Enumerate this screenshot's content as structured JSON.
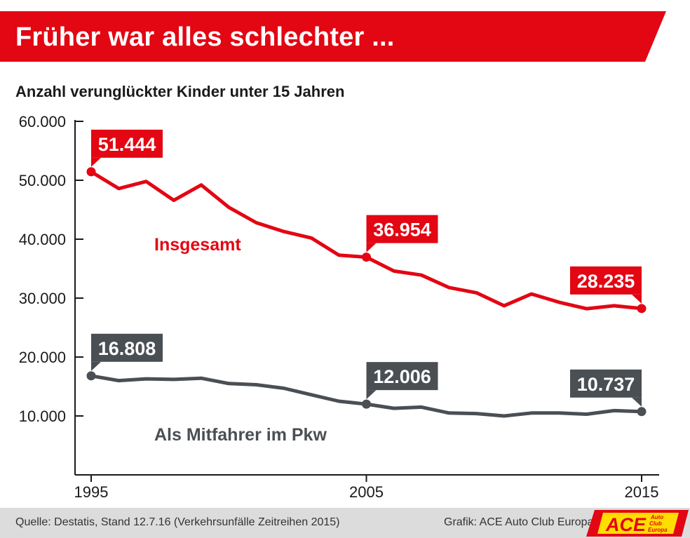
{
  "header": {
    "title": "Früher war alles schlechter ...",
    "subtitle": "Anzahl verunglückter Kinder unter 15 Jahren"
  },
  "colors": {
    "accent_red": "#e30613",
    "series_gray": "#4a4f54",
    "axis": "#1a1a1a",
    "footer_bg": "#dcdcdc",
    "logo_yellow": "#ffdd00"
  },
  "chart_data": {
    "type": "line",
    "title": "Anzahl verunglückter Kinder unter 15 Jahren",
    "xlabel": "",
    "ylabel": "",
    "ylim": [
      0,
      60000
    ],
    "xlim": [
      1995,
      2015
    ],
    "y_ticks": [
      10000,
      20000,
      30000,
      40000,
      50000,
      60000
    ],
    "y_tick_labels": [
      "10.000",
      "20.000",
      "30.000",
      "40.000",
      "50.000",
      "60.000"
    ],
    "x_ticks": [
      1995,
      2005,
      2015
    ],
    "x_tick_labels": [
      "1995",
      "2005",
      "2015"
    ],
    "grid": false,
    "x": [
      1995,
      1996,
      1997,
      1998,
      1999,
      2000,
      2001,
      2002,
      2003,
      2004,
      2005,
      2006,
      2007,
      2008,
      2009,
      2010,
      2011,
      2012,
      2013,
      2014,
      2015
    ],
    "series": [
      {
        "name": "Insgesamt",
        "color": "#e30613",
        "values": [
          51444,
          48600,
          49800,
          46600,
          49200,
          45400,
          42800,
          41300,
          40200,
          37300,
          36954,
          34600,
          33900,
          31800,
          30900,
          28700,
          30700,
          29300,
          28200,
          28700,
          28235
        ],
        "labeled_points": [
          {
            "index": 0,
            "label": "51.444"
          },
          {
            "index": 10,
            "label": "36.954"
          },
          {
            "index": 20,
            "label": "28.235"
          }
        ]
      },
      {
        "name": "Als Mitfahrer im Pkw",
        "color": "#4a4f54",
        "values": [
          16808,
          16000,
          16300,
          16200,
          16400,
          15500,
          15300,
          14700,
          13600,
          12500,
          12006,
          11300,
          11500,
          10500,
          10400,
          10000,
          10500,
          10500,
          10300,
          10900,
          10737
        ],
        "labeled_points": [
          {
            "index": 0,
            "label": "16.808"
          },
          {
            "index": 10,
            "label": "12.006"
          },
          {
            "index": 20,
            "label": "10.737"
          }
        ]
      }
    ]
  },
  "footer": {
    "source": "Quelle: Destatis, Stand 12.7.16 (Verkehrsunfälle Zeitreihen 2015)",
    "credit": "Grafik: ACE Auto Club Europa"
  },
  "logo": {
    "mark": "ACE",
    "line1": "Auto",
    "line2": "Club",
    "line3": "Europa"
  }
}
